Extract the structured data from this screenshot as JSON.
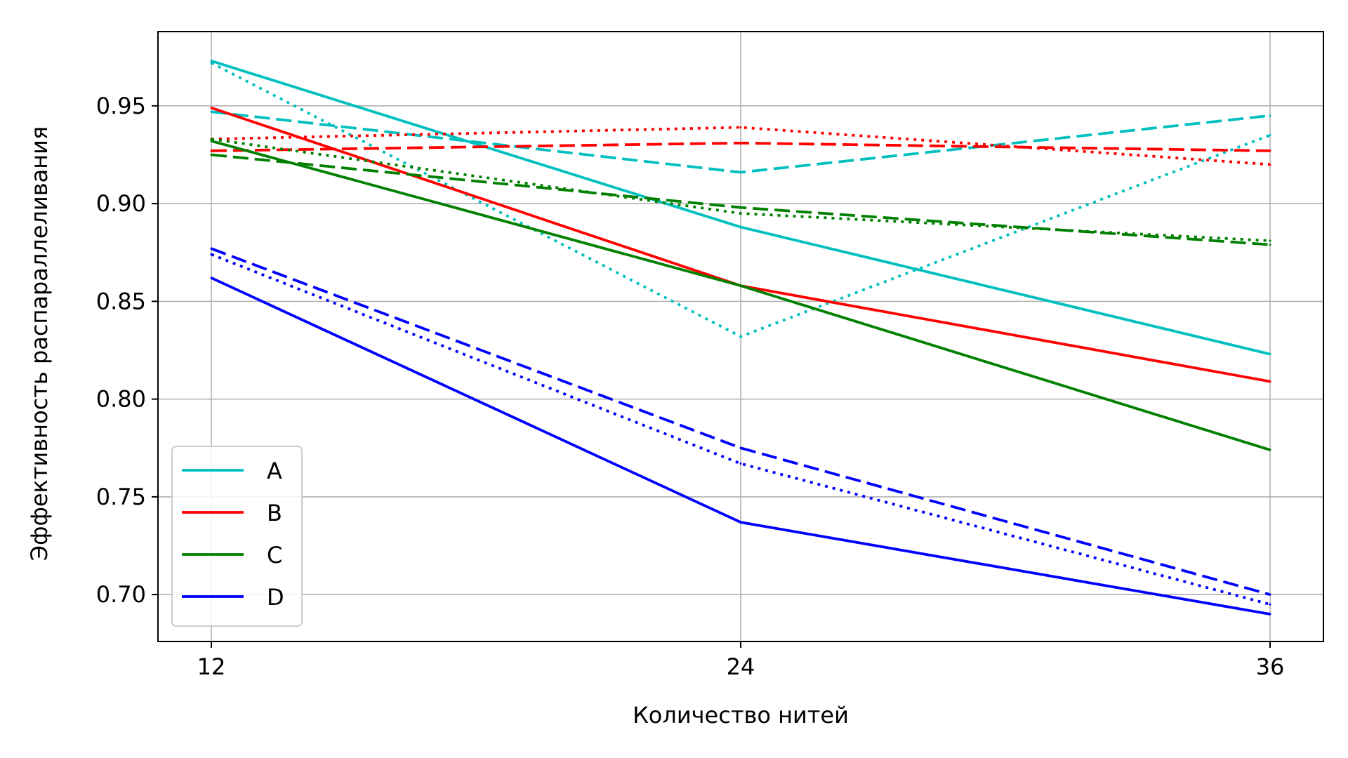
{
  "chart_data": {
    "type": "line",
    "x": [
      12,
      24,
      36
    ],
    "xticks": [
      "12",
      "24",
      "36"
    ],
    "xlabel": "Количество нитей",
    "ylabel": "Эффективность распараллеливания",
    "ylim": [
      0.676,
      0.988
    ],
    "yticks": [
      "0.70",
      "0.75",
      "0.80",
      "0.85",
      "0.90",
      "0.95"
    ],
    "ytick_values": [
      0.7,
      0.75,
      0.8,
      0.85,
      0.9,
      0.95
    ],
    "grid": true,
    "legend_position": "lower-left",
    "legend": [
      "A",
      "B",
      "C",
      "D"
    ],
    "series": [
      {
        "group": "A",
        "style": "solid",
        "color": "#00bfbf",
        "values": [
          0.973,
          0.888,
          0.823
        ]
      },
      {
        "group": "A",
        "style": "dashed",
        "color": "#00bfbf",
        "values": [
          0.947,
          0.916,
          0.945
        ]
      },
      {
        "group": "A",
        "style": "dotted",
        "color": "#00bfbf",
        "values": [
          0.972,
          0.832,
          0.935
        ]
      },
      {
        "group": "B",
        "style": "solid",
        "color": "#ff0000",
        "values": [
          0.949,
          0.858,
          0.809
        ]
      },
      {
        "group": "B",
        "style": "dashed",
        "color": "#ff0000",
        "values": [
          0.927,
          0.931,
          0.927
        ]
      },
      {
        "group": "B",
        "style": "dotted",
        "color": "#ff0000",
        "values": [
          0.933,
          0.939,
          0.92
        ]
      },
      {
        "group": "C",
        "style": "solid",
        "color": "#008000",
        "values": [
          0.932,
          0.858,
          0.774
        ]
      },
      {
        "group": "C",
        "style": "dashed",
        "color": "#008000",
        "values": [
          0.925,
          0.898,
          0.879
        ]
      },
      {
        "group": "C",
        "style": "dotted",
        "color": "#008000",
        "values": [
          0.933,
          0.895,
          0.881
        ]
      },
      {
        "group": "D",
        "style": "solid",
        "color": "#0000ff",
        "values": [
          0.862,
          0.737,
          0.69
        ]
      },
      {
        "group": "D",
        "style": "dashed",
        "color": "#0000ff",
        "values": [
          0.877,
          0.775,
          0.7
        ]
      },
      {
        "group": "D",
        "style": "dotted",
        "color": "#0000ff",
        "values": [
          0.874,
          0.767,
          0.695
        ]
      }
    ],
    "legend_colors": [
      "#00bfbf",
      "#ff0000",
      "#008000",
      "#0000ff"
    ]
  }
}
